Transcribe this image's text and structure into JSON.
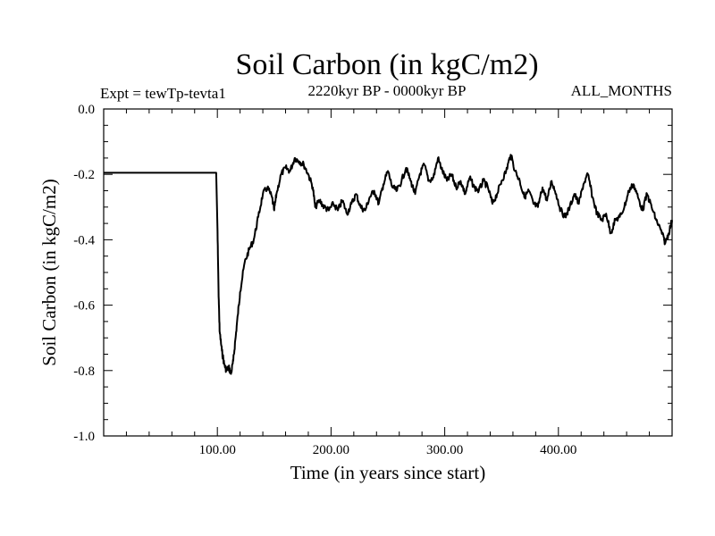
{
  "chart_data": {
    "type": "line",
    "title": "Soil Carbon (in kgC/m2)",
    "subtitle_left": "Expt = tewTp-tevta1",
    "subtitle_center": "2220kyr BP - 0000kyr BP",
    "subtitle_right": "ALL_MONTHS",
    "xlabel": "Time (in years since start)",
    "ylabel": "Soil Carbon (in kgC/m2)",
    "xlim": [
      0,
      500
    ],
    "ylim": [
      -1.0,
      0.0
    ],
    "x_ticks": [
      100,
      200,
      300,
      400
    ],
    "x_tick_labels": [
      "100.00",
      "200.00",
      "300.00",
      "400.00"
    ],
    "y_ticks": [
      0.0,
      -0.2,
      -0.4,
      -0.6,
      -0.8,
      -1.0
    ],
    "y_tick_labels": [
      "0.0",
      "-0.2",
      "-0.4",
      "-0.6",
      "-0.8",
      "-1.0"
    ],
    "series": [
      {
        "name": "Soil Carbon",
        "color": "#000000",
        "x": [
          0,
          99,
          100,
          101,
          102,
          104,
          106,
          108,
          110,
          112,
          114,
          116,
          118,
          120,
          124,
          128,
          132,
          136,
          140,
          144,
          148,
          150,
          152,
          156,
          160,
          164,
          168,
          172,
          176,
          180,
          184,
          186,
          190,
          194,
          198,
          202,
          206,
          210,
          214,
          218,
          222,
          226,
          230,
          234,
          238,
          242,
          246,
          250,
          254,
          258,
          262,
          266,
          270,
          274,
          278,
          282,
          286,
          290,
          294,
          298,
          302,
          306,
          310,
          314,
          318,
          322,
          326,
          330,
          334,
          338,
          342,
          346,
          350,
          354,
          358,
          362,
          366,
          370,
          374,
          378,
          382,
          386,
          390,
          394,
          398,
          402,
          406,
          410,
          414,
          418,
          422,
          426,
          430,
          434,
          438,
          442,
          446,
          450,
          454,
          458,
          462,
          466,
          470,
          474,
          478,
          482,
          486,
          490,
          494,
          497,
          500
        ],
        "values": [
          -0.195,
          -0.195,
          -0.35,
          -0.55,
          -0.68,
          -0.74,
          -0.78,
          -0.8,
          -0.79,
          -0.81,
          -0.77,
          -0.7,
          -0.63,
          -0.56,
          -0.47,
          -0.43,
          -0.4,
          -0.33,
          -0.26,
          -0.24,
          -0.27,
          -0.31,
          -0.26,
          -0.2,
          -0.18,
          -0.19,
          -0.15,
          -0.16,
          -0.17,
          -0.2,
          -0.24,
          -0.3,
          -0.28,
          -0.3,
          -0.31,
          -0.29,
          -0.31,
          -0.28,
          -0.32,
          -0.29,
          -0.26,
          -0.3,
          -0.31,
          -0.27,
          -0.25,
          -0.29,
          -0.23,
          -0.19,
          -0.24,
          -0.25,
          -0.22,
          -0.18,
          -0.22,
          -0.26,
          -0.2,
          -0.17,
          -0.22,
          -0.21,
          -0.15,
          -0.19,
          -0.22,
          -0.2,
          -0.24,
          -0.22,
          -0.26,
          -0.21,
          -0.24,
          -0.25,
          -0.22,
          -0.24,
          -0.29,
          -0.26,
          -0.22,
          -0.19,
          -0.14,
          -0.19,
          -0.22,
          -0.27,
          -0.25,
          -0.29,
          -0.3,
          -0.24,
          -0.28,
          -0.22,
          -0.26,
          -0.31,
          -0.33,
          -0.3,
          -0.26,
          -0.29,
          -0.23,
          -0.2,
          -0.27,
          -0.32,
          -0.34,
          -0.32,
          -0.38,
          -0.34,
          -0.33,
          -0.3,
          -0.25,
          -0.23,
          -0.27,
          -0.31,
          -0.26,
          -0.3,
          -0.34,
          -0.37,
          -0.41,
          -0.38,
          -0.34
        ]
      }
    ]
  }
}
